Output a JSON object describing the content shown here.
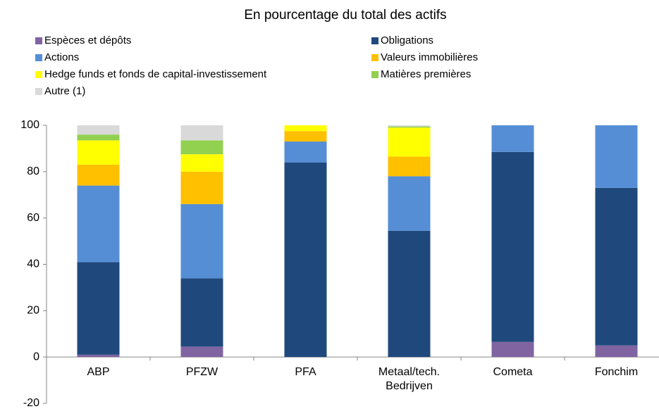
{
  "chart_data": {
    "type": "stacked_bar",
    "title": "En pourcentage du total des actifs",
    "categories": [
      "ABP",
      "PFZW",
      "PFA",
      "Metaal/tech. Bedrijven",
      "Cometa",
      "Fonchim"
    ],
    "series": [
      {
        "name": "Espèces et dépôts",
        "color": "#8064a2",
        "values": [
          1,
          4.5,
          0,
          0,
          6.5,
          5
        ]
      },
      {
        "name": "Obligations",
        "color": "#1f497d",
        "values": [
          40,
          29.5,
          84,
          54.5,
          82,
          68
        ]
      },
      {
        "name": "Actions",
        "color": "#558ed5",
        "values": [
          33,
          32,
          9,
          23.5,
          11.5,
          27
        ]
      },
      {
        "name": "Valeurs immobilières",
        "color": "#ffc000",
        "values": [
          9,
          14,
          4.5,
          8.5,
          0,
          0
        ]
      },
      {
        "name": "Hedge funds et fonds de capital-investissement",
        "color": "#ffff00",
        "values": [
          10.5,
          7.5,
          2.5,
          12.5,
          0,
          0
        ]
      },
      {
        "name": "Matières premières",
        "color": "#92d050",
        "values": [
          2.5,
          6,
          0,
          0.5,
          0,
          0
        ]
      },
      {
        "name": "Autre (1)",
        "color": "#d9d9d9",
        "values": [
          4,
          6.5,
          0,
          0.5,
          0,
          0
        ]
      }
    ],
    "ylim": [
      -20,
      100
    ],
    "yticks": [
      -20,
      0,
      20,
      40,
      60,
      80,
      100
    ],
    "grid": false,
    "legend": "top"
  }
}
